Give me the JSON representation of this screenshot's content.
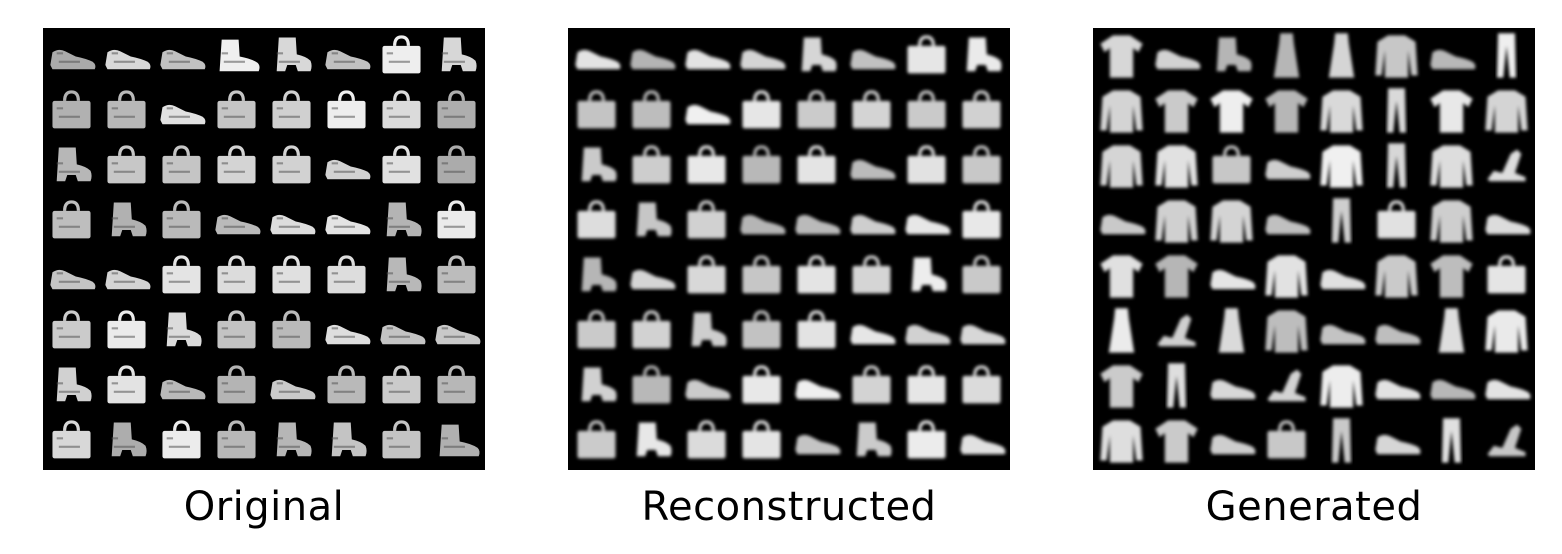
{
  "panels": [
    {
      "caption": "Original",
      "style": "sharp",
      "grid": [
        [
          "sneaker",
          "sneaker",
          "sneaker",
          "boot",
          "ankle-boot",
          "sneaker",
          "bag",
          "ankle-boot"
        ],
        [
          "bag",
          "bag",
          "sneaker",
          "bag",
          "bag",
          "bag",
          "bag",
          "bag"
        ],
        [
          "ankle-boot",
          "bag",
          "bag",
          "bag",
          "bag",
          "sneaker",
          "bag",
          "bag"
        ],
        [
          "bag",
          "ankle-boot",
          "bag",
          "sneaker",
          "sneaker",
          "sneaker",
          "ankle-boot",
          "bag"
        ],
        [
          "sneaker",
          "sneaker",
          "bag",
          "bag",
          "bag",
          "bag",
          "ankle-boot",
          "bag"
        ],
        [
          "bag",
          "bag",
          "ankle-boot",
          "bag",
          "bag",
          "sneaker",
          "sneaker",
          "sneaker"
        ],
        [
          "ankle-boot",
          "bag",
          "sneaker",
          "bag",
          "sneaker",
          "bag",
          "bag",
          "bag"
        ],
        [
          "bag",
          "ankle-boot",
          "bag",
          "bag",
          "ankle-boot",
          "ankle-boot",
          "bag",
          "boot"
        ]
      ]
    },
    {
      "caption": "Reconstructed",
      "style": "blurry",
      "grid": [
        [
          "sneaker",
          "sneaker",
          "sneaker",
          "sneaker",
          "ankle-boot",
          "sneaker",
          "bag",
          "ankle-boot"
        ],
        [
          "bag",
          "bag",
          "sneaker",
          "bag",
          "bag",
          "bag",
          "bag",
          "bag"
        ],
        [
          "ankle-boot",
          "bag",
          "bag",
          "bag",
          "bag",
          "sneaker",
          "bag",
          "bag"
        ],
        [
          "bag",
          "ankle-boot",
          "bag",
          "sneaker",
          "sneaker",
          "sneaker",
          "sneaker",
          "bag"
        ],
        [
          "ankle-boot",
          "sneaker",
          "bag",
          "bag",
          "bag",
          "bag",
          "ankle-boot",
          "bag"
        ],
        [
          "bag",
          "bag",
          "ankle-boot",
          "bag",
          "bag",
          "sneaker",
          "sneaker",
          "sneaker"
        ],
        [
          "ankle-boot",
          "bag",
          "sneaker",
          "bag",
          "sneaker",
          "bag",
          "bag",
          "bag"
        ],
        [
          "bag",
          "ankle-boot",
          "bag",
          "bag",
          "sneaker",
          "ankle-boot",
          "bag",
          "sneaker"
        ]
      ]
    },
    {
      "caption": "Generated",
      "style": "blurry",
      "grid": [
        [
          "tshirt",
          "sneaker",
          "ankle-boot",
          "dress",
          "dress",
          "pullover",
          "sneaker",
          "trouser"
        ],
        [
          "pullover",
          "tshirt",
          "tshirt",
          "tshirt",
          "pullover",
          "trouser",
          "tshirt",
          "pullover"
        ],
        [
          "pullover",
          "pullover",
          "bag",
          "sneaker",
          "pullover",
          "trouser",
          "pullover",
          "sandal"
        ],
        [
          "sneaker",
          "pullover",
          "pullover",
          "sneaker",
          "trouser",
          "bag",
          "pullover",
          "sneaker"
        ],
        [
          "tshirt",
          "tshirt",
          "sneaker",
          "pullover",
          "sneaker",
          "pullover",
          "tshirt",
          "bag"
        ],
        [
          "dress",
          "sandal",
          "dress",
          "pullover",
          "sneaker",
          "sneaker",
          "dress",
          "pullover"
        ],
        [
          "tshirt",
          "trouser",
          "sneaker",
          "sandal",
          "pullover",
          "sneaker",
          "sneaker",
          "sneaker"
        ],
        [
          "pullover",
          "tshirt",
          "sneaker",
          "bag",
          "trouser",
          "sneaker",
          "trouser",
          "sandal"
        ]
      ]
    }
  ]
}
